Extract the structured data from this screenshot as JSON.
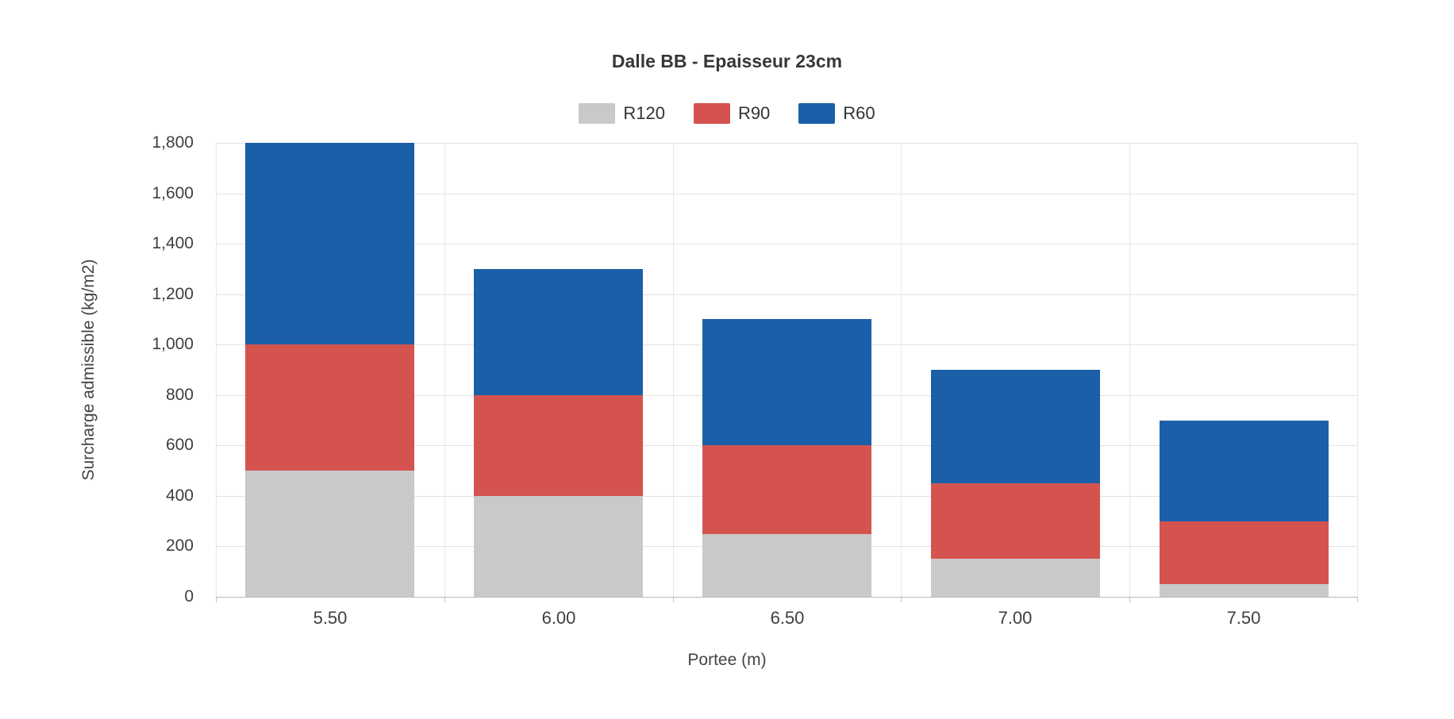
{
  "chart_data": {
    "type": "bar",
    "stacked": true,
    "title": "Dalle BB - Epaisseur 23cm",
    "xlabel": "Portee (m)",
    "ylabel": "Surcharge admissible (kg/m2)",
    "categories": [
      "5.50",
      "6.00",
      "6.50",
      "7.00",
      "7.50"
    ],
    "series": [
      {
        "name": "R120",
        "color": "#c9c9c9",
        "values": [
          500,
          400,
          250,
          150,
          50
        ]
      },
      {
        "name": "R90",
        "color": "#d5534f",
        "values": [
          500,
          400,
          350,
          300,
          250
        ]
      },
      {
        "name": "R60",
        "color": "#1a5fa8",
        "values": [
          800,
          500,
          500,
          450,
          400
        ]
      }
    ],
    "stack_totals": [
      1800,
      1300,
      1100,
      900,
      700
    ],
    "ylim": [
      0,
      1800
    ],
    "ytick_step": 200,
    "ytick_labels": [
      "0",
      "200",
      "400",
      "600",
      "800",
      "1,000",
      "1,200",
      "1,400",
      "1,600",
      "1,800"
    ],
    "grid": true,
    "legend_position": "top"
  }
}
